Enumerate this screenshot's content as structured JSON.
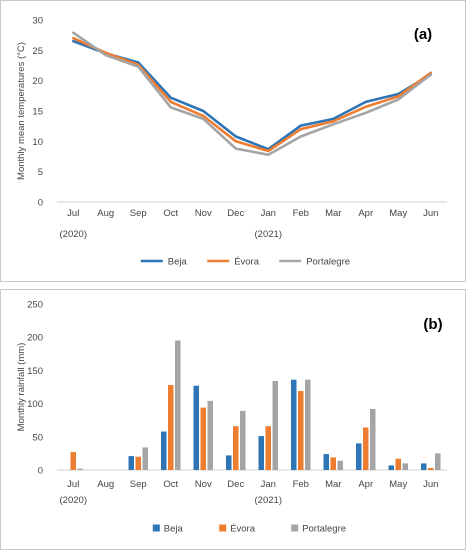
{
  "chart_data": [
    {
      "type": "line",
      "panel_label": "(a)",
      "ylabel": "Monthly mean temperatures (°C)",
      "categories": [
        "Jul",
        "Aug",
        "Sep",
        "Oct",
        "Nov",
        "Dec",
        "Jan",
        "Feb",
        "Mar",
        "Apr",
        "May",
        "Jun"
      ],
      "year_labels": [
        {
          "category": "Jul",
          "text": "(2020)"
        },
        {
          "category": "Jan",
          "text": "(2021)"
        }
      ],
      "ylim": [
        0,
        30
      ],
      "yticks": [
        0,
        5,
        10,
        15,
        20,
        25,
        30
      ],
      "grid": false,
      "legend_position": "bottom",
      "series": [
        {
          "name": "Beja",
          "color": "#2e75b6",
          "values": [
            26.5,
            24.5,
            23.0,
            17.2,
            15.0,
            10.8,
            8.7,
            12.6,
            13.7,
            16.5,
            17.8,
            21.0
          ]
        },
        {
          "name": "Évora",
          "color": "#ed7d31",
          "values": [
            27.0,
            24.6,
            22.6,
            16.5,
            14.2,
            10.0,
            8.4,
            12.0,
            13.3,
            15.7,
            17.4,
            21.3
          ]
        },
        {
          "name": "Portalegre",
          "color": "#a5a5a5",
          "values": [
            27.9,
            24.2,
            22.3,
            15.6,
            13.7,
            8.8,
            7.8,
            10.8,
            12.8,
            14.7,
            16.9,
            21.0
          ]
        }
      ]
    },
    {
      "type": "bar",
      "panel_label": "(b)",
      "ylabel": "Monthly rainfall (mm)",
      "categories": [
        "Jul",
        "Aug",
        "Sep",
        "Oct",
        "Nov",
        "Dec",
        "Jan",
        "Feb",
        "Mar",
        "Apr",
        "May",
        "Jun"
      ],
      "year_labels": [
        {
          "category": "Jul",
          "text": "(2020)"
        },
        {
          "category": "Jan",
          "text": "(2021)"
        }
      ],
      "ylim": [
        0,
        250
      ],
      "yticks": [
        0,
        50,
        100,
        150,
        200,
        250
      ],
      "grid": false,
      "legend_position": "bottom",
      "series": [
        {
          "name": "Beja",
          "color": "#2e75b6",
          "values": [
            0,
            0,
            21,
            58,
            127,
            22,
            51,
            136,
            24,
            40,
            7,
            10
          ]
        },
        {
          "name": "Évora",
          "color": "#ed7d31",
          "values": [
            27,
            0,
            20,
            128,
            94,
            66,
            66,
            119,
            19,
            64,
            17,
            3
          ]
        },
        {
          "name": "Portalegre",
          "color": "#a5a5a5",
          "values": [
            2,
            0,
            34,
            195,
            104,
            89,
            134,
            136,
            14,
            92,
            10,
            25
          ]
        }
      ]
    }
  ]
}
